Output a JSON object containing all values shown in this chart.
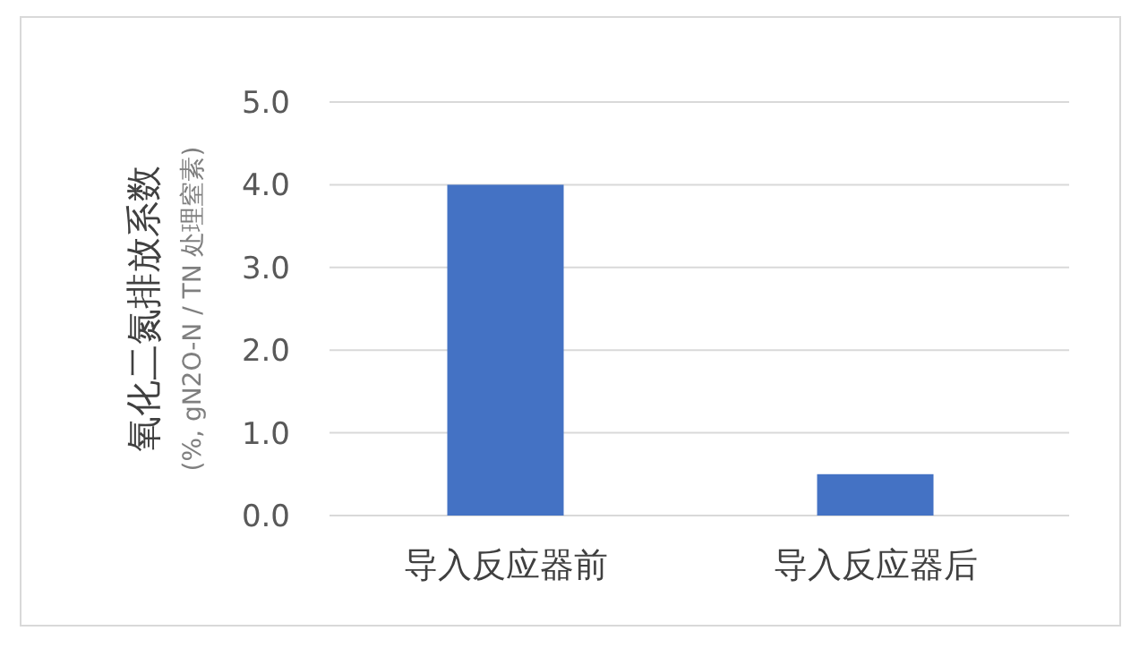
{
  "chart_data": {
    "type": "bar",
    "ylabel": "氧化二氮排放系数\n(%, gN2O-N / TN 处理窒素)",
    "categories": [
      "导入反应器前",
      "导入反应器后"
    ],
    "values": [
      4.0,
      0.5
    ],
    "color": "#4472c4",
    "ylim": [
      0,
      5
    ],
    "yticks": [
      {
        "value": 0,
        "label": "0.0"
      },
      {
        "value": 1,
        "label": "1.0"
      },
      {
        "value": 2,
        "label": "2.0"
      },
      {
        "value": 3,
        "label": "3.0"
      },
      {
        "value": 4,
        "label": "4.0"
      },
      {
        "value": 5,
        "label": "5.0"
      }
    ],
    "grid": "y"
  }
}
